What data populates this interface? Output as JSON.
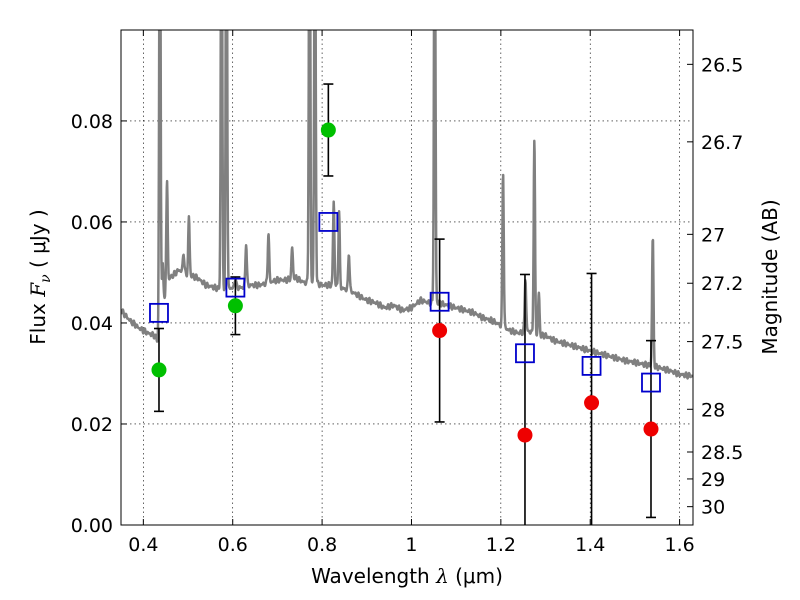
{
  "chart_data": {
    "type": "scatter",
    "xlabel": {
      "prefix": "Wavelength  ",
      "symbol": "λ",
      "units": " (μm)"
    },
    "ylabel": {
      "prefix": "Flux  ",
      "symbol": "F",
      "sub": "ν",
      "units": "  ( μJy )"
    },
    "y2label": "Magnitude (AB)",
    "xlim": [
      0.35,
      1.63
    ],
    "ylim": [
      0.0,
      0.098
    ],
    "grid": true,
    "x_ticks": [
      {
        "value": 0.4,
        "label": "0.4"
      },
      {
        "value": 0.6,
        "label": "0.6"
      },
      {
        "value": 0.8,
        "label": "0.8"
      },
      {
        "value": 1.0,
        "label": "1"
      },
      {
        "value": 1.2,
        "label": "1.2"
      },
      {
        "value": 1.4,
        "label": "1.4"
      },
      {
        "value": 1.6,
        "label": "1.6"
      }
    ],
    "y_ticks": [
      {
        "value": 0.0,
        "label": "0.00"
      },
      {
        "value": 0.02,
        "label": "0.02"
      },
      {
        "value": 0.04,
        "label": "0.04"
      },
      {
        "value": 0.06,
        "label": "0.06"
      },
      {
        "value": 0.08,
        "label": "0.08"
      }
    ],
    "y2_ticks": [
      {
        "value": 26.5,
        "label": "26.5"
      },
      {
        "value": 26.7,
        "label": "26.7"
      },
      {
        "value": 27.0,
        "label": "27"
      },
      {
        "value": 27.2,
        "label": "27.2"
      },
      {
        "value": 27.5,
        "label": "27.5"
      },
      {
        "value": 28.0,
        "label": "28"
      },
      {
        "value": 28.5,
        "label": "28.5"
      },
      {
        "value": 29.0,
        "label": "29"
      },
      {
        "value": 30.0,
        "label": "30"
      }
    ],
    "y2_zero_flux_mag": 23.9,
    "sed_model": {
      "color": "#808080",
      "x": [
        0.35,
        0.37,
        0.39,
        0.41,
        0.425,
        0.435,
        0.44,
        0.45,
        0.46,
        0.48,
        0.5,
        0.52,
        0.54,
        0.56,
        0.58,
        0.6,
        0.62,
        0.64,
        0.66,
        0.68,
        0.7,
        0.72,
        0.74,
        0.76,
        0.78,
        0.8,
        0.82,
        0.84,
        0.86,
        0.88,
        0.9,
        0.92,
        0.94,
        0.96,
        0.98,
        1.0,
        1.02,
        1.04,
        1.06,
        1.08,
        1.1,
        1.12,
        1.14,
        1.16,
        1.18,
        1.2,
        1.22,
        1.24,
        1.26,
        1.28,
        1.3,
        1.32,
        1.34,
        1.36,
        1.38,
        1.4,
        1.42,
        1.44,
        1.46,
        1.48,
        1.5,
        1.52,
        1.54,
        1.56,
        1.58,
        1.6,
        1.63
      ],
      "y": [
        0.0425,
        0.0405,
        0.039,
        0.038,
        0.0375,
        0.036,
        0.041,
        0.0465,
        0.049,
        0.0505,
        0.0495,
        0.049,
        0.0475,
        0.047,
        0.0465,
        0.047,
        0.047,
        0.0475,
        0.0475,
        0.048,
        0.0485,
        0.0485,
        0.049,
        0.048,
        0.048,
        0.0475,
        0.0475,
        0.047,
        0.0465,
        0.0455,
        0.0445,
        0.044,
        0.043,
        0.0435,
        0.0425,
        0.043,
        0.0445,
        0.044,
        0.044,
        0.0435,
        0.043,
        0.0425,
        0.042,
        0.041,
        0.0405,
        0.0395,
        0.0385,
        0.038,
        0.0385,
        0.0375,
        0.0375,
        0.0365,
        0.036,
        0.0355,
        0.035,
        0.0345,
        0.034,
        0.0335,
        0.033,
        0.0325,
        0.0322,
        0.0318,
        0.0315,
        0.031,
        0.0305,
        0.0298,
        0.0295
      ],
      "lines": [
        {
          "x": 0.437,
          "peak": 0.14
        },
        {
          "x": 0.443,
          "peak": 0.052
        },
        {
          "x": 0.453,
          "peak": 0.068
        },
        {
          "x": 0.49,
          "peak": 0.054
        },
        {
          "x": 0.502,
          "peak": 0.061
        },
        {
          "x": 0.575,
          "peak": 0.14
        },
        {
          "x": 0.586,
          "peak": 0.14
        },
        {
          "x": 0.606,
          "peak": 0.049
        },
        {
          "x": 0.63,
          "peak": 0.056
        },
        {
          "x": 0.68,
          "peak": 0.058
        },
        {
          "x": 0.733,
          "peak": 0.055
        },
        {
          "x": 0.772,
          "peak": 0.14
        },
        {
          "x": 0.784,
          "peak": 0.14
        },
        {
          "x": 0.826,
          "peak": 0.064
        },
        {
          "x": 0.838,
          "peak": 0.062
        },
        {
          "x": 0.86,
          "peak": 0.054
        },
        {
          "x": 1.052,
          "peak": 0.14
        },
        {
          "x": 1.205,
          "peak": 0.07
        },
        {
          "x": 1.255,
          "peak": 0.049
        },
        {
          "x": 1.275,
          "peak": 0.076
        },
        {
          "x": 1.285,
          "peak": 0.046
        },
        {
          "x": 1.54,
          "peak": 0.057
        }
      ]
    },
    "model_photometry": {
      "color": "#0000cc",
      "x": [
        0.435,
        0.606,
        0.814,
        1.063,
        1.254,
        1.403,
        1.536
      ],
      "y": [
        0.042,
        0.047,
        0.06,
        0.0442,
        0.034,
        0.0315,
        0.0282
      ]
    },
    "detections_optical": {
      "color": "#00c000",
      "x": [
        0.435,
        0.606,
        0.814
      ],
      "y": [
        0.0307,
        0.0434,
        0.0782
      ],
      "yerr": [
        0.0082,
        0.0057,
        0.0091
      ]
    },
    "detections_nir": {
      "color": "#ee0000",
      "x": [
        1.063,
        1.254,
        1.403,
        1.536
      ],
      "y": [
        0.0385,
        0.0178,
        0.0242,
        0.019
      ],
      "yerr": [
        0.0181,
        0.0318,
        0.0256,
        0.0175
      ]
    }
  }
}
